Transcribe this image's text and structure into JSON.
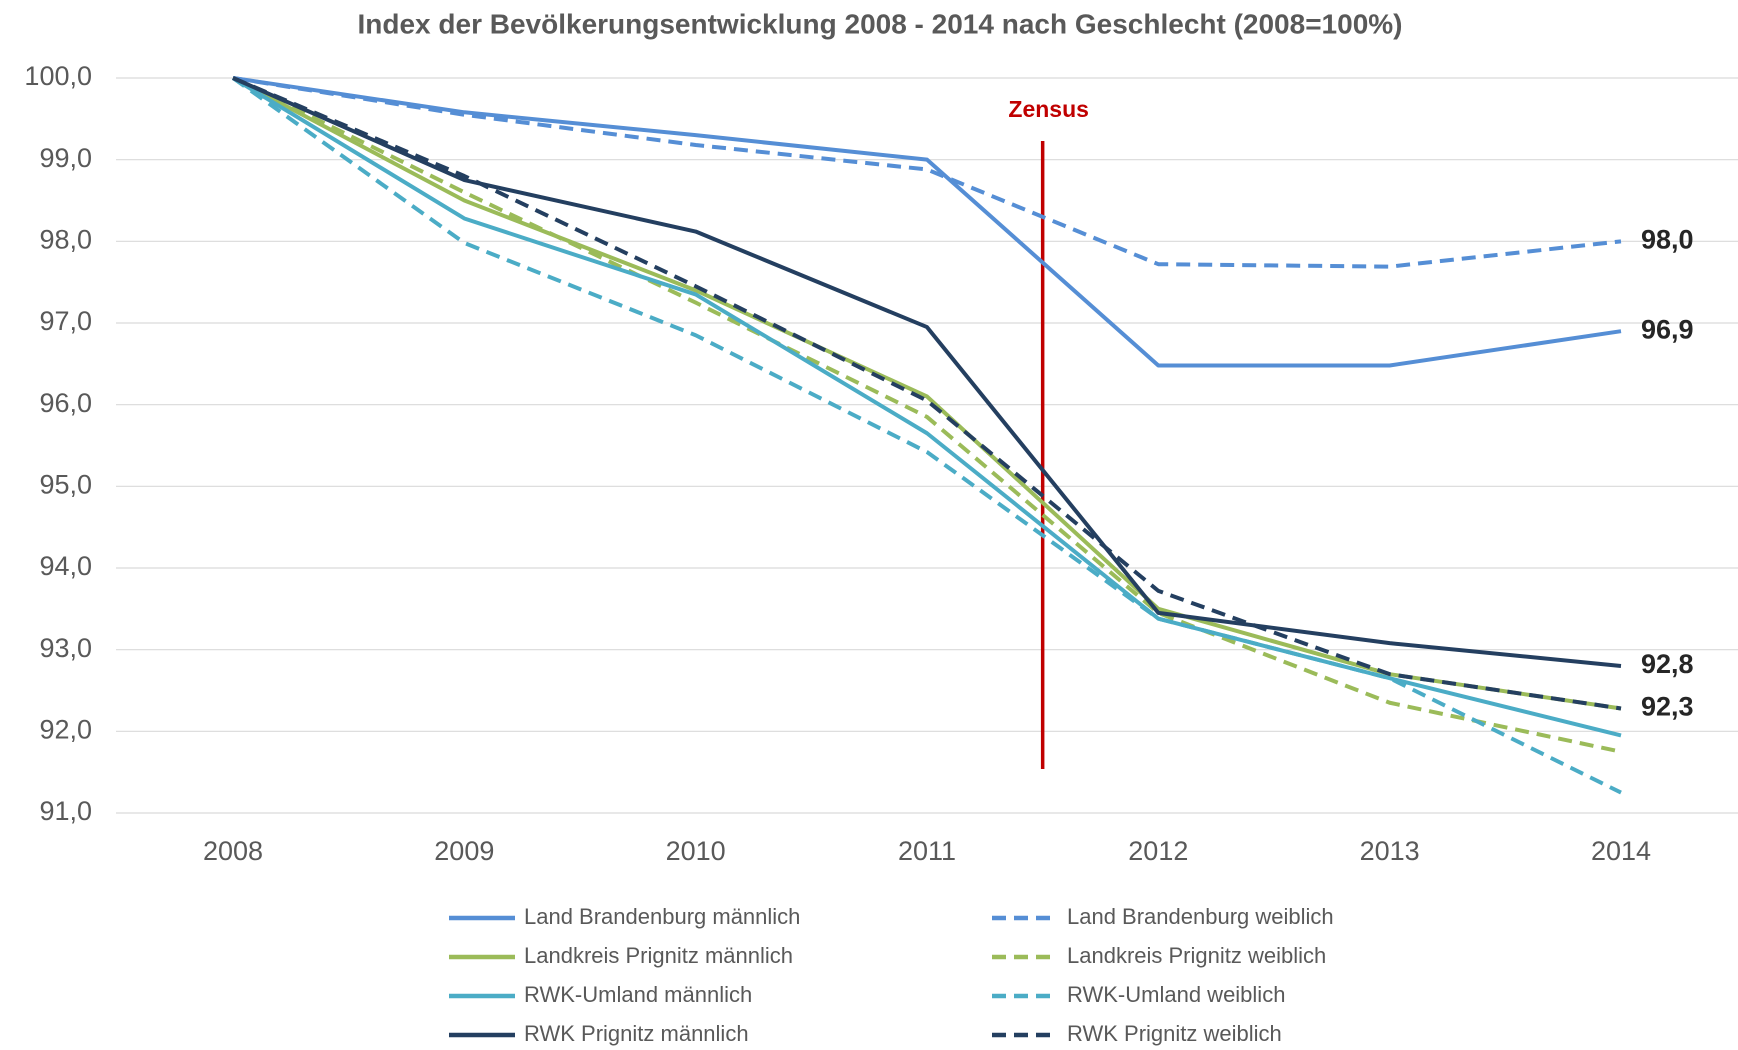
{
  "chart_data": {
    "type": "line",
    "title": "Index der Bevölkerungsentwicklung 2008 - 2014 nach Geschlecht (2008=100%)",
    "categories": [
      "2008",
      "2009",
      "2010",
      "2011",
      "2012",
      "2013",
      "2014"
    ],
    "ylim": [
      91,
      100
    ],
    "yticks": [
      {
        "value": 91,
        "label": "91,0"
      },
      {
        "value": 92,
        "label": "92,0"
      },
      {
        "value": 93,
        "label": "93,0"
      },
      {
        "value": 94,
        "label": "94,0"
      },
      {
        "value": 95,
        "label": "95,0"
      },
      {
        "value": 96,
        "label": "96,0"
      },
      {
        "value": 97,
        "label": "97,0"
      },
      {
        "value": 98,
        "label": "98,0"
      },
      {
        "value": 99,
        "label": "99,0"
      },
      {
        "value": 100,
        "label": "100,0"
      }
    ],
    "grid": true,
    "legend": "bottom",
    "annotation": {
      "text": "Zensus",
      "position": 3.5,
      "color": "#c00000"
    },
    "series": [
      {
        "name": "Land Brandenburg männlich",
        "color": "#558ed5",
        "dashed": false,
        "values": [
          100,
          99.58,
          99.3,
          99.0,
          96.48,
          96.48,
          96.9
        ],
        "value_labels": [
          null,
          null,
          null,
          null,
          null,
          null,
          "96,9"
        ]
      },
      {
        "name": "Land Brandenburg weiblich",
        "color": "#558ed5",
        "dashed": true,
        "values": [
          100,
          99.55,
          99.18,
          98.88,
          97.72,
          97.69,
          98.0
        ],
        "value_labels": [
          null,
          null,
          null,
          null,
          null,
          null,
          "98,0"
        ]
      },
      {
        "name": "Landkreis Prignitz männlich",
        "color": "#9bbb59",
        "dashed": false,
        "values": [
          100,
          98.5,
          97.4,
          96.1,
          93.5,
          92.7,
          92.28
        ]
      },
      {
        "name": "Landkreis Prignitz weiblich",
        "color": "#9bbb59",
        "dashed": true,
        "values": [
          100,
          98.6,
          97.25,
          95.85,
          93.45,
          92.35,
          91.75
        ]
      },
      {
        "name": "RWK-Umland männlich",
        "color": "#4bacc6",
        "dashed": false,
        "values": [
          100,
          98.28,
          97.35,
          95.65,
          93.38,
          92.65,
          91.95
        ]
      },
      {
        "name": "RWK-Umland weiblich",
        "color": "#4bacc6",
        "dashed": true,
        "values": [
          100,
          97.98,
          96.85,
          95.42,
          93.38,
          92.65,
          91.25
        ]
      },
      {
        "name": "RWK Prignitz männlich",
        "color": "#243f60",
        "dashed": false,
        "values": [
          100,
          98.75,
          98.12,
          96.95,
          93.45,
          93.08,
          92.8
        ],
        "value_labels": [
          null,
          null,
          null,
          null,
          null,
          null,
          "92,8"
        ]
      },
      {
        "name": "RWK Prignitz weiblich",
        "color": "#243f60",
        "dashed": true,
        "values": [
          100,
          98.8,
          97.45,
          96.05,
          93.72,
          92.7,
          92.28
        ],
        "value_labels": [
          null,
          null,
          null,
          null,
          null,
          null,
          "92,3"
        ]
      }
    ]
  }
}
